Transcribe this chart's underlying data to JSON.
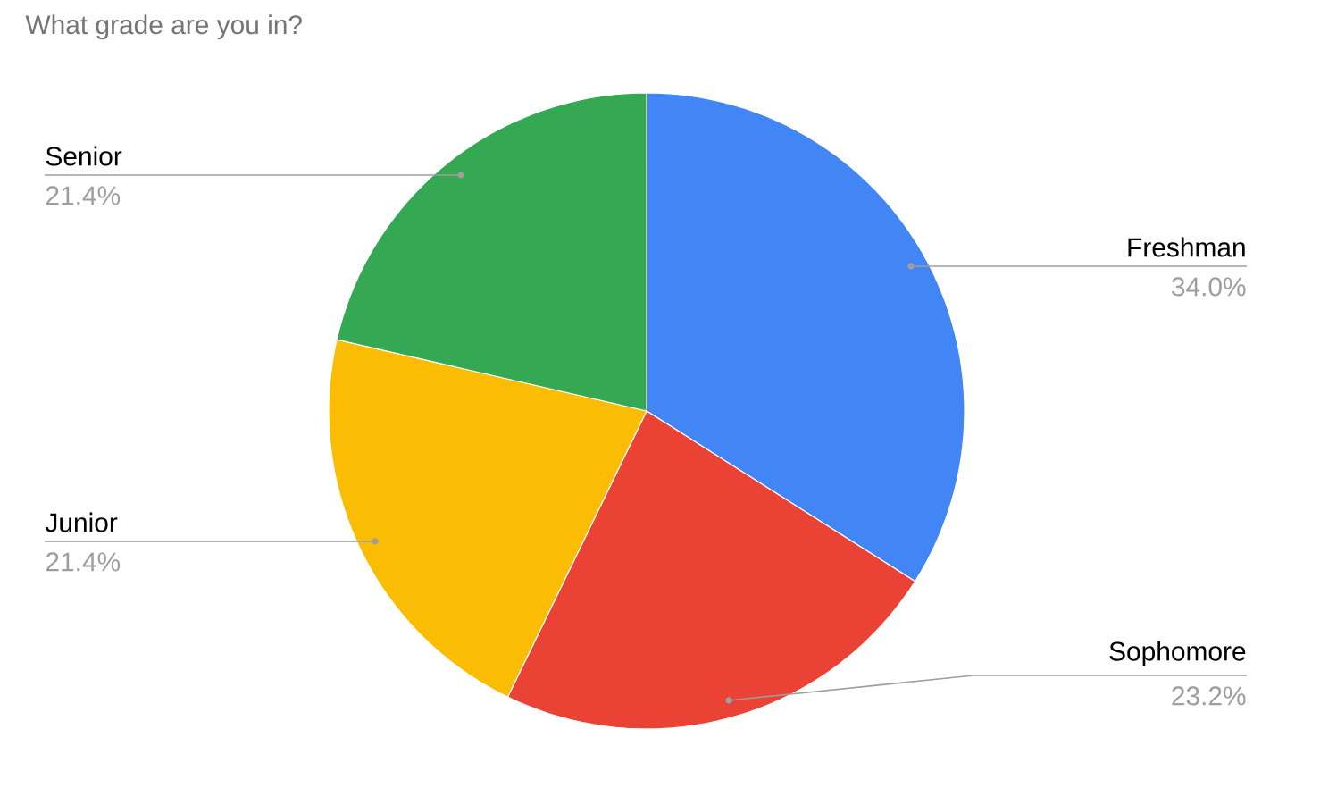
{
  "chart_data": {
    "type": "pie",
    "title": "What grade are you in?",
    "categories": [
      "Freshman",
      "Sophomore",
      "Junior",
      "Senior"
    ],
    "values": [
      34.0,
      23.2,
      21.4,
      21.4
    ],
    "colors": [
      "#4285f4",
      "#ea4335",
      "#fbbc04",
      "#34a853"
    ],
    "value_labels": [
      "34.0%",
      "23.2%",
      "21.4%",
      "21.4%"
    ]
  }
}
